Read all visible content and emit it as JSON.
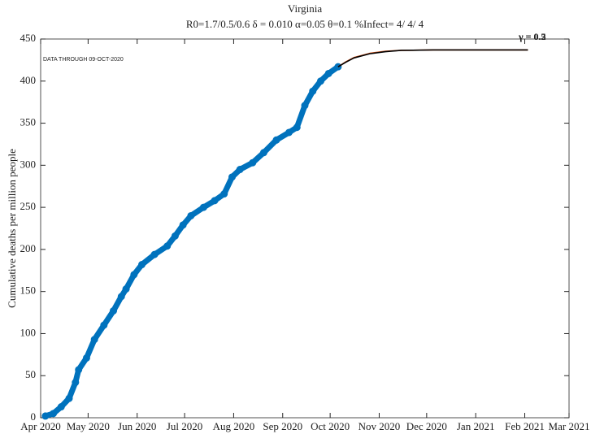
{
  "chart_data": {
    "type": "line",
    "title": "Virginia",
    "subtitle": "R0=1.7/0.5/0.6  δ = 0.010  α=0.05  θ=0.1  %Infect= 4/ 4/ 4",
    "ylabel": "Cumulative deaths per million people",
    "annotations": [
      "DATA THROUGH 09-OCT-2020",
      "γ = 0.2",
      "γ = 0.5"
    ],
    "xlim": [
      92,
      426
    ],
    "xticks": [
      {
        "value": 92,
        "label": "Apr 2020"
      },
      {
        "value": 122,
        "label": "May 2020"
      },
      {
        "value": 153,
        "label": "Jun 2020"
      },
      {
        "value": 183,
        "label": "Jul 2020"
      },
      {
        "value": 214,
        "label": "Aug 2020"
      },
      {
        "value": 245,
        "label": "Sep 2020"
      },
      {
        "value": 275,
        "label": "Oct 2020"
      },
      {
        "value": 306,
        "label": "Nov 2020"
      },
      {
        "value": 336,
        "label": "Dec 2020"
      },
      {
        "value": 367,
        "label": "Jan 2021"
      },
      {
        "value": 398,
        "label": "Feb 2021"
      },
      {
        "value": 426,
        "label": "Mar 2021"
      }
    ],
    "ylim": [
      0,
      450
    ],
    "yticks": [
      0,
      50,
      100,
      150,
      200,
      250,
      300,
      350,
      400,
      450
    ],
    "series": [
      {
        "color": "#0072bd",
        "marker": "o",
        "x": [
          95,
          100,
          105,
          110,
          114,
          116,
          121,
          126,
          132,
          138,
          143,
          146,
          151,
          156,
          164,
          172,
          177,
          182,
          187,
          195,
          202,
          208,
          213,
          218,
          226,
          233,
          241,
          249,
          254,
          259,
          264,
          269,
          274,
          280
        ],
        "values": [
          2,
          5,
          13,
          23,
          42,
          57,
          71,
          93,
          110,
          127,
          144,
          153,
          170,
          182,
          194,
          204,
          216,
          229,
          240,
          250,
          258,
          266,
          286,
          295,
          303,
          315,
          330,
          339,
          345,
          371,
          388,
          400,
          409,
          417
        ]
      },
      {
        "color": "#d95319",
        "x": [
          280,
          285,
          290,
          300,
          310,
          320,
          340,
          370,
          400
        ],
        "values": [
          417,
          423,
          428,
          433,
          435.5,
          436.5,
          437,
          437,
          437
        ]
      },
      {
        "color": "#000000",
        "x": [
          280,
          285,
          290,
          300,
          310,
          320,
          340,
          370,
          400
        ],
        "values": [
          417,
          422.5,
          427.5,
          432.5,
          435,
          436.5,
          437,
          437,
          437
        ]
      }
    ]
  }
}
